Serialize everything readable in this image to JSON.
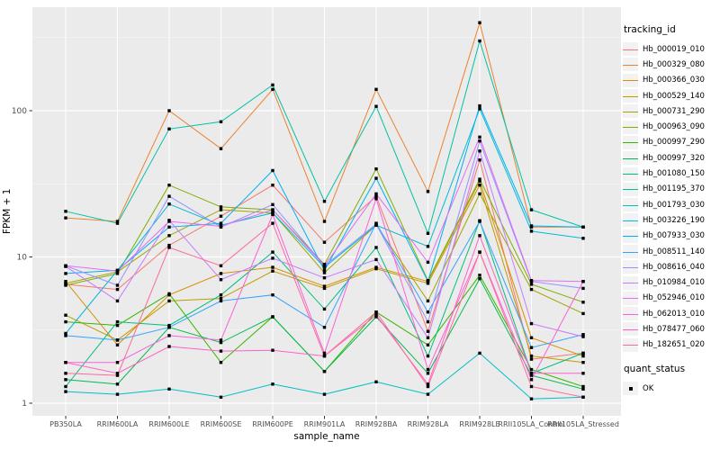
{
  "chart_data": {
    "type": "line",
    "title": "",
    "xlabel": "sample_name",
    "ylabel": "FPKM + 1",
    "y_scale": "log10",
    "y_ticks": [
      1,
      10,
      100
    ],
    "y_minor_ticks": [
      3.1623,
      31.623,
      316.23
    ],
    "ylim": [
      0.85,
      510
    ],
    "grid": "white major and minor gridlines on grey panel",
    "legend_position": "right",
    "point_marker": "black-square",
    "categories": [
      "PB350LA",
      "RRIM600LA",
      "RRIM600LE",
      "RRIM600SE",
      "RRIM600PE",
      "RRIM901LA",
      "RRIM928BA",
      "RRIM928LA",
      "RRIM928LE",
      "RRII105LA_Control",
      "RRII105LA_Stressed"
    ],
    "series": [
      {
        "name": "Hb_000019_010",
        "color": "#F8766D",
        "values": [
          6.5,
          6.0,
          12,
          19,
          31,
          12.6,
          26,
          3.1,
          46,
          2.0,
          2.2
        ]
      },
      {
        "name": "Hb_000329_080",
        "color": "#EA8331",
        "values": [
          18.5,
          17.5,
          100,
          55,
          140,
          17.5,
          140,
          28,
          400,
          16,
          16
        ]
      },
      {
        "name": "Hb_000366_030",
        "color": "#D89000",
        "values": [
          6.8,
          2.5,
          5.5,
          7.7,
          8.5,
          6.3,
          8.5,
          6.8,
          33,
          2.8,
          2.1
        ]
      },
      {
        "name": "Hb_000529_140",
        "color": "#C09B00",
        "values": [
          4.0,
          2.7,
          5.0,
          5.2,
          8.0,
          6.1,
          8.3,
          6.6,
          31,
          2.1,
          1.9
        ]
      },
      {
        "name": "Hb_000731_290",
        "color": "#A3A500",
        "values": [
          6.6,
          7.9,
          14,
          21,
          20,
          7.8,
          16.5,
          5.0,
          27,
          6.0,
          4.1
        ]
      },
      {
        "name": "Hb_000963_090",
        "color": "#7CAE00",
        "values": [
          6.4,
          7.7,
          31,
          22,
          21,
          8.9,
          40,
          6.9,
          34,
          6.5,
          4.9
        ]
      },
      {
        "name": "Hb_000997_290",
        "color": "#39B600",
        "values": [
          3.6,
          3.4,
          5.6,
          1.9,
          3.9,
          1.65,
          4.2,
          2.5,
          7.5,
          1.7,
          1.3
        ]
      },
      {
        "name": "Hb_000997_320",
        "color": "#00BB4E",
        "values": [
          1.45,
          1.35,
          3.3,
          2.6,
          3.9,
          1.65,
          3.9,
          1.6,
          7.1,
          1.55,
          1.25
        ]
      },
      {
        "name": "Hb_001080_150",
        "color": "#00BF7D",
        "values": [
          1.3,
          3.6,
          3.4,
          5.5,
          10.8,
          4.4,
          11.6,
          2.1,
          17.7,
          1.6,
          2.2
        ]
      },
      {
        "name": "Hb_001195_370",
        "color": "#00C1A3",
        "values": [
          20.5,
          17,
          75,
          84,
          150,
          24,
          107,
          14.5,
          300,
          21,
          16
        ]
      },
      {
        "name": "Hb_001793_030",
        "color": "#00BFC4",
        "values": [
          1.2,
          1.15,
          1.25,
          1.1,
          1.35,
          1.15,
          1.4,
          1.15,
          2.2,
          1.07,
          1.1
        ]
      },
      {
        "name": "Hb_003226_190",
        "color": "#00BBDA",
        "values": [
          3.0,
          8.1,
          23,
          16.5,
          20,
          8.5,
          16.5,
          11.8,
          103,
          15,
          13.4
        ]
      },
      {
        "name": "Hb_007933_030",
        "color": "#00B0F6",
        "values": [
          7.7,
          8.1,
          16,
          17,
          39,
          8.1,
          34.5,
          6.8,
          108,
          16.3,
          16
        ]
      },
      {
        "name": "Hb_008511_140",
        "color": "#35A2FF",
        "values": [
          2.9,
          2.7,
          3.3,
          5.0,
          5.5,
          3.3,
          17,
          4.2,
          17.5,
          2.4,
          2.95
        ]
      },
      {
        "name": "Hb_008616_040",
        "color": "#9590FF",
        "values": [
          8.7,
          6.4,
          26,
          16,
          22.8,
          8.7,
          16.8,
          3.6,
          62,
          6.8,
          6.1
        ]
      },
      {
        "name": "Hb_010984_010",
        "color": "#C77CFF",
        "values": [
          8.6,
          5.0,
          17.8,
          7.0,
          9.8,
          7.2,
          9.6,
          2.8,
          53,
          3.5,
          2.85
        ]
      },
      {
        "name": "Hb_052946_010",
        "color": "#E76BF3",
        "values": [
          8.7,
          8.0,
          17.5,
          16.2,
          21,
          8.7,
          27,
          9.2,
          66,
          6.9,
          6.8
        ]
      },
      {
        "name": "Hb_062013_010",
        "color": "#FA62DB",
        "values": [
          1.9,
          1.9,
          2.9,
          2.7,
          19.5,
          2.2,
          25,
          1.7,
          10.8,
          1.45,
          6.8
        ]
      },
      {
        "name": "Hb_078477_060",
        "color": "#FF61C9",
        "values": [
          1.9,
          1.6,
          2.44,
          2.27,
          2.3,
          2.1,
          4.0,
          1.35,
          14,
          1.6,
          1.6
        ]
      },
      {
        "name": "Hb_182651_020",
        "color": "#FF6A98",
        "values": [
          1.6,
          1.55,
          11.6,
          8.7,
          17,
          2.1,
          4.2,
          1.3,
          10.8,
          1.3,
          1.1
        ]
      }
    ],
    "legend": {
      "tracking_title": "tracking_id",
      "quant_title": "quant_status",
      "quant_items": [
        {
          "label": "OK",
          "marker": "black-square"
        }
      ]
    }
  },
  "colors": {
    "panel_bg": "#EBEBEB",
    "grid_major": "#FFFFFF",
    "grid_minor": "#FFFFFF",
    "tick_text": "#4D4D4D",
    "axis_text": "#000000",
    "marker": "#000000",
    "legend_key_bg": "#F2F2F2",
    "page_bg": "#FFFFFF"
  }
}
